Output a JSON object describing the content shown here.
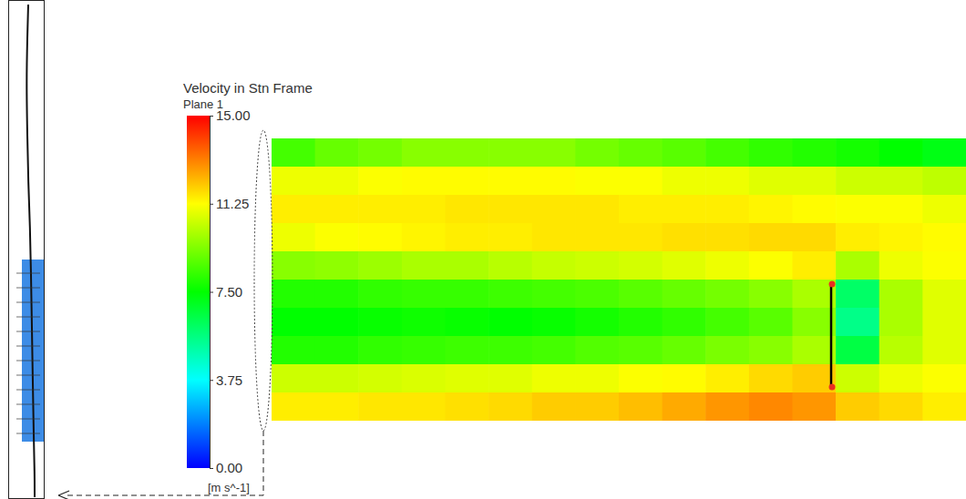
{
  "chart_data": {
    "type": "heatmap",
    "title": "Velocity in Stn Frame",
    "subtitle": "Plane 1",
    "colorbar_label": "[m s^-1]",
    "colorbar_range": [
      0,
      15
    ],
    "colorbar_ticks": [
      {
        "value": 0,
        "label": "0.00"
      },
      {
        "value": 3.75,
        "label": "3.75"
      },
      {
        "value": 7.5,
        "label": "7.50"
      },
      {
        "value": 11.25,
        "label": "11.25"
      },
      {
        "value": 15,
        "label": "15.00"
      }
    ],
    "tick_labels": false,
    "cells": [
      [
        8.5,
        9,
        9.2,
        9.5,
        9.5,
        9.5,
        9.5,
        9.2,
        9,
        8.8,
        8.5,
        8.2,
        8,
        7.8,
        7.5,
        7.2
      ],
      [
        11,
        11,
        11.2,
        11.3,
        11.3,
        11.3,
        11.3,
        11.2,
        11.2,
        11,
        11,
        10.8,
        10.8,
        10.5,
        10.5,
        10.3
      ],
      [
        11.5,
        11.5,
        11.5,
        11.5,
        11.6,
        11.6,
        11.6,
        11.6,
        11.5,
        11.5,
        11.5,
        11.4,
        11.3,
        11.2,
        11.2,
        11
      ],
      [
        11,
        11.2,
        11.3,
        11.4,
        11.5,
        11.5,
        11.6,
        11.6,
        11.6,
        11.7,
        11.7,
        11.8,
        11.8,
        11.5,
        11.4,
        11.3
      ],
      [
        9.5,
        9.6,
        9.8,
        10,
        10,
        10.2,
        10.4,
        10.5,
        10.6,
        10.8,
        11,
        11.2,
        11.5,
        10,
        11,
        11.2
      ],
      [
        8,
        8,
        8.2,
        8.3,
        8.3,
        8.4,
        8.5,
        8.6,
        8.8,
        9,
        9.2,
        9.5,
        10,
        6,
        10,
        10.8
      ],
      [
        7.5,
        7.5,
        7.6,
        7.7,
        7.6,
        7.5,
        7.6,
        7.8,
        8,
        8.2,
        8.5,
        8.8,
        9.5,
        5.5,
        10,
        10.8
      ],
      [
        8,
        8,
        8.2,
        8.3,
        8.4,
        8.4,
        8.5,
        8.7,
        8.8,
        9,
        9.3,
        9.5,
        10,
        6.5,
        10.2,
        10.8
      ],
      [
        10.5,
        10.5,
        10.6,
        10.7,
        10.8,
        10.8,
        11,
        11,
        11.2,
        11.3,
        11.5,
        11.8,
        12,
        10.5,
        11,
        11.2
      ],
      [
        11.5,
        11.5,
        11.6,
        11.6,
        11.7,
        11.8,
        12,
        12,
        12.2,
        12.5,
        12.8,
        13,
        12.8,
        12,
        11.8,
        11.5
      ]
    ]
  }
}
